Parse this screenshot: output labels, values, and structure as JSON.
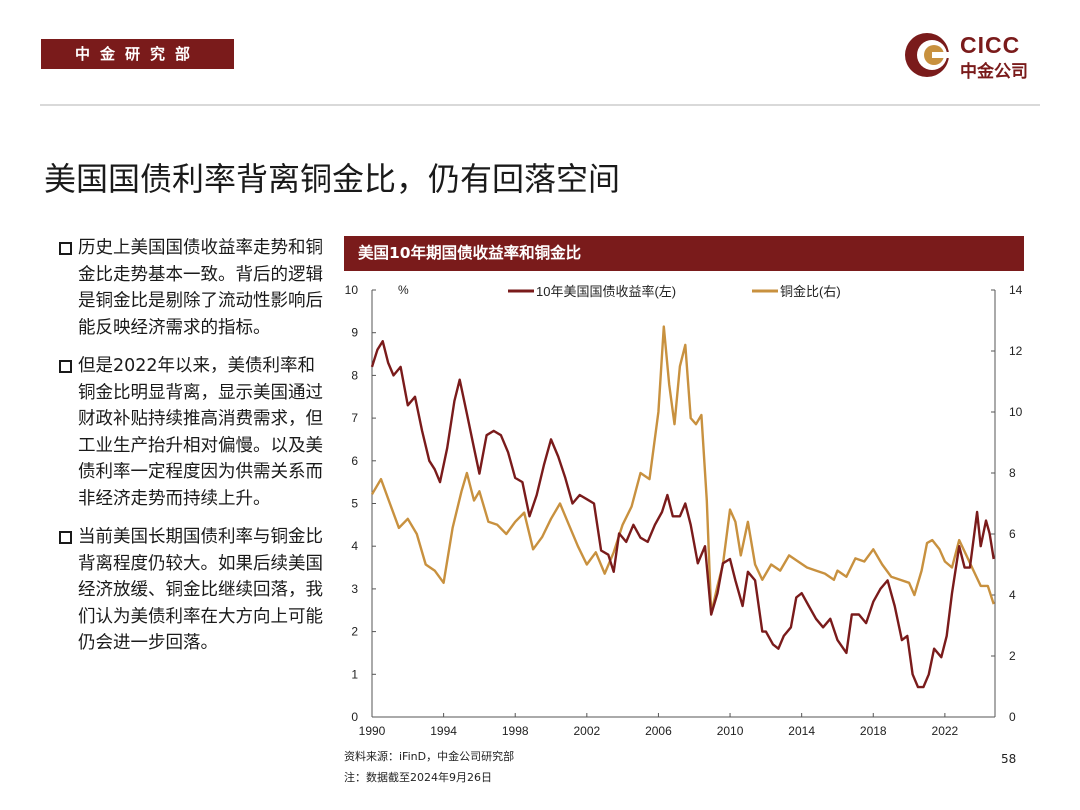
{
  "header": {
    "department": "中金研究部",
    "logo_en": "CICC",
    "logo_cn": "中金公司"
  },
  "page_title": "美国国债利率背离铜金比，仍有回落空间",
  "bullets": [
    "历史上美国国债收益率走势和铜金比走势基本一致。背后的逻辑是铜金比是剔除了流动性影响后能反映经济需求的指标。",
    "但是2022年以来，美债利率和铜金比明显背离，显示美国通过财政补贴持续推高消费需求，但工业生产抬升相对偏慢。以及美债利率一定程度因为供需关系而非经济走势而持续上升。",
    "当前美国长期国债利率与铜金比背离程度仍较大。如果后续美国经济放缓、铜金比继续回落，我们认为美债利率在大方向上可能仍会进一步回落。"
  ],
  "chart_header": "美国10年期国债收益率和铜金比",
  "footer": {
    "source": "资料来源：iFinD，中金公司研究部",
    "note": "注：数据截至2024年9月26日",
    "page": "58"
  },
  "colors": {
    "brand": "#7a1b1b",
    "yield_line": "#7a1b1b",
    "ratio_line": "#c8913f"
  },
  "chart_data": {
    "type": "line",
    "title": "美国10年期国债收益率和铜金比",
    "left_axis_unit": "%",
    "y_left_lim": [
      0,
      10
    ],
    "y_left_ticks": [
      "0",
      "1",
      "2",
      "3",
      "4",
      "5",
      "6",
      "7",
      "8",
      "9",
      "10"
    ],
    "y_right_lim": [
      0,
      14
    ],
    "y_right_ticks": [
      "0",
      "2",
      "4",
      "6",
      "8",
      "10",
      "12",
      "14"
    ],
    "x_lim": [
      1990,
      2024.8
    ],
    "x_ticks": [
      "1990",
      "1994",
      "1998",
      "2002",
      "2006",
      "2010",
      "2014",
      "2018",
      "2022"
    ],
    "legend_position": "top",
    "series": [
      {
        "name": "10年美国国债收益率(左)",
        "axis": "left",
        "x": [
          1990,
          1990.3,
          1990.6,
          1990.9,
          1991.2,
          1991.6,
          1992,
          1992.4,
          1992.8,
          1993.2,
          1993.5,
          1993.8,
          1994.2,
          1994.6,
          1994.9,
          1995.3,
          1995.7,
          1996,
          1996.4,
          1996.8,
          1997.2,
          1997.6,
          1998,
          1998.4,
          1998.8,
          1999.2,
          1999.6,
          2000,
          2000.4,
          2000.8,
          2001.2,
          2001.6,
          2002,
          2002.4,
          2002.8,
          2003.2,
          2003.5,
          2003.8,
          2004.2,
          2004.6,
          2005,
          2005.4,
          2005.8,
          2006.2,
          2006.5,
          2006.8,
          2007.2,
          2007.5,
          2007.8,
          2008.2,
          2008.6,
          2008.95,
          2009.3,
          2009.6,
          2010,
          2010.3,
          2010.7,
          2011,
          2011.4,
          2011.8,
          2012,
          2012.4,
          2012.7,
          2013,
          2013.4,
          2013.7,
          2014,
          2014.4,
          2014.8,
          2015.2,
          2015.6,
          2016,
          2016.5,
          2016.8,
          2017.2,
          2017.6,
          2018,
          2018.4,
          2018.8,
          2019.2,
          2019.6,
          2019.9,
          2020.2,
          2020.5,
          2020.8,
          2021.1,
          2021.4,
          2021.8,
          2022.1,
          2022.4,
          2022.8,
          2023.1,
          2023.4,
          2023.8,
          2024,
          2024.3,
          2024.5,
          2024.73
        ],
        "values": [
          8.2,
          8.6,
          8.8,
          8.3,
          8.0,
          8.2,
          7.3,
          7.5,
          6.7,
          6.0,
          5.8,
          5.5,
          6.3,
          7.4,
          7.9,
          7.1,
          6.3,
          5.7,
          6.6,
          6.7,
          6.6,
          6.2,
          5.6,
          5.5,
          4.7,
          5.2,
          5.9,
          6.5,
          6.1,
          5.6,
          5.0,
          5.2,
          5.1,
          5.0,
          3.9,
          3.8,
          3.4,
          4.3,
          4.1,
          4.5,
          4.2,
          4.1,
          4.5,
          4.8,
          5.2,
          4.7,
          4.7,
          5.0,
          4.5,
          3.6,
          4.0,
          2.4,
          2.9,
          3.6,
          3.7,
          3.2,
          2.6,
          3.4,
          3.2,
          2.0,
          2.0,
          1.7,
          1.6,
          1.9,
          2.1,
          2.8,
          2.9,
          2.6,
          2.3,
          2.1,
          2.3,
          1.8,
          1.5,
          2.4,
          2.4,
          2.2,
          2.7,
          3.0,
          3.2,
          2.6,
          1.8,
          1.9,
          1.0,
          0.7,
          0.7,
          1.0,
          1.6,
          1.4,
          1.9,
          2.9,
          4.0,
          3.5,
          3.5,
          4.8,
          4.0,
          4.6,
          4.3,
          3.7
        ]
      },
      {
        "name": "铜金比(右)",
        "axis": "right",
        "x": [
          1990,
          1990.5,
          1991,
          1991.5,
          1992,
          1992.5,
          1993,
          1993.5,
          1994,
          1994.5,
          1995,
          1995.3,
          1995.7,
          1996,
          1996.5,
          1997,
          1997.5,
          1998,
          1998.5,
          1999,
          1999.5,
          2000,
          2000.5,
          2001,
          2001.5,
          2002,
          2002.5,
          2003,
          2003.5,
          2004,
          2004.5,
          2005,
          2005.5,
          2006,
          2006.3,
          2006.6,
          2006.9,
          2007.2,
          2007.5,
          2007.8,
          2008.1,
          2008.4,
          2008.7,
          2008.95,
          2009.3,
          2009.6,
          2010,
          2010.3,
          2010.6,
          2011,
          2011.4,
          2011.8,
          2012.3,
          2012.8,
          2013.3,
          2013.8,
          2014.3,
          2014.8,
          2015.3,
          2015.8,
          2016,
          2016.5,
          2017,
          2017.5,
          2018,
          2018.5,
          2019,
          2019.5,
          2020,
          2020.3,
          2020.7,
          2021,
          2021.3,
          2021.7,
          2022,
          2022.4,
          2022.8,
          2023.2,
          2023.6,
          2024,
          2024.4,
          2024.73
        ],
        "values": [
          7.3,
          7.8,
          7.0,
          6.2,
          6.5,
          6.0,
          5.0,
          4.8,
          4.4,
          6.2,
          7.4,
          8.0,
          7.1,
          7.4,
          6.4,
          6.3,
          6.0,
          6.4,
          6.7,
          5.5,
          5.9,
          6.5,
          7.0,
          6.3,
          5.6,
          5.0,
          5.4,
          4.7,
          5.4,
          6.3,
          6.9,
          8.0,
          7.8,
          10.0,
          12.8,
          10.9,
          9.6,
          11.5,
          12.2,
          9.8,
          9.6,
          9.9,
          7.1,
          3.4,
          4.3,
          5.0,
          6.8,
          6.4,
          5.3,
          6.4,
          5.0,
          4.5,
          5.0,
          4.8,
          5.3,
          5.1,
          4.9,
          4.8,
          4.7,
          4.5,
          4.8,
          4.6,
          5.2,
          5.1,
          5.5,
          5.0,
          4.6,
          4.5,
          4.4,
          4.0,
          4.8,
          5.7,
          5.8,
          5.5,
          5.1,
          4.9,
          5.8,
          5.3,
          4.8,
          4.3,
          4.3,
          3.7
        ]
      }
    ]
  }
}
